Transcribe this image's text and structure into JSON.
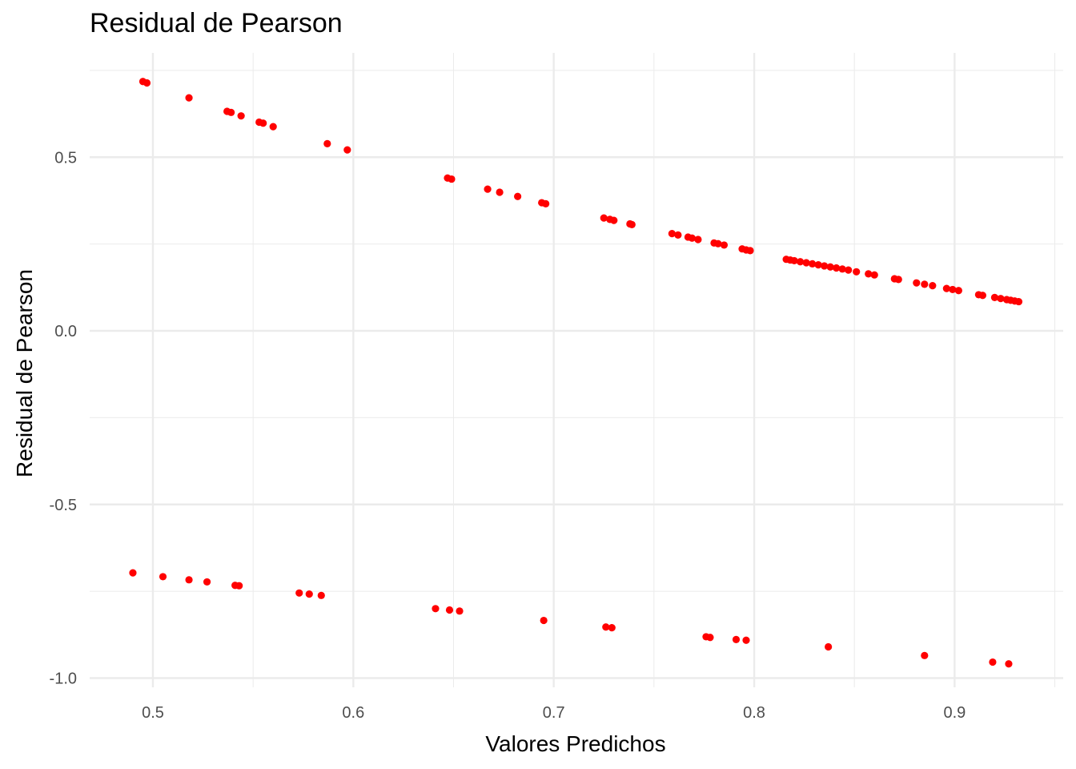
{
  "chart_data": {
    "type": "scatter",
    "title": "Residual de Pearson",
    "xlabel": "Valores Predichos",
    "ylabel": "Residual de Pearson",
    "xlim": [
      0.472,
      0.952
    ],
    "ylim": [
      -1.02,
      0.75
    ],
    "x_ticks": [
      0.5,
      0.6,
      0.7,
      0.8,
      0.9
    ],
    "x_tick_labels": [
      "0.5",
      "0.6",
      "0.7",
      "0.8",
      "0.9"
    ],
    "y_ticks": [
      -1.0,
      -0.5,
      0.0,
      0.5
    ],
    "y_tick_labels": [
      "-1.0",
      "-0.5",
      "0.0",
      "0.5"
    ],
    "grid": true,
    "point_color": "#ff0000",
    "points": [
      {
        "x": 0.495,
        "y": 0.718
      },
      {
        "x": 0.497,
        "y": 0.714
      },
      {
        "x": 0.518,
        "y": 0.671
      },
      {
        "x": 0.537,
        "y": 0.632
      },
      {
        "x": 0.539,
        "y": 0.629
      },
      {
        "x": 0.544,
        "y": 0.619
      },
      {
        "x": 0.553,
        "y": 0.601
      },
      {
        "x": 0.555,
        "y": 0.598
      },
      {
        "x": 0.56,
        "y": 0.588
      },
      {
        "x": 0.587,
        "y": 0.539
      },
      {
        "x": 0.597,
        "y": 0.521
      },
      {
        "x": 0.647,
        "y": 0.44
      },
      {
        "x": 0.649,
        "y": 0.437
      },
      {
        "x": 0.667,
        "y": 0.408
      },
      {
        "x": 0.673,
        "y": 0.399
      },
      {
        "x": 0.682,
        "y": 0.387
      },
      {
        "x": 0.694,
        "y": 0.369
      },
      {
        "x": 0.696,
        "y": 0.366
      },
      {
        "x": 0.725,
        "y": 0.325
      },
      {
        "x": 0.728,
        "y": 0.321
      },
      {
        "x": 0.73,
        "y": 0.318
      },
      {
        "x": 0.738,
        "y": 0.308
      },
      {
        "x": 0.739,
        "y": 0.306
      },
      {
        "x": 0.759,
        "y": 0.28
      },
      {
        "x": 0.762,
        "y": 0.276
      },
      {
        "x": 0.767,
        "y": 0.27
      },
      {
        "x": 0.769,
        "y": 0.267
      },
      {
        "x": 0.772,
        "y": 0.263
      },
      {
        "x": 0.78,
        "y": 0.253
      },
      {
        "x": 0.782,
        "y": 0.251
      },
      {
        "x": 0.785,
        "y": 0.247
      },
      {
        "x": 0.794,
        "y": 0.236
      },
      {
        "x": 0.796,
        "y": 0.233
      },
      {
        "x": 0.798,
        "y": 0.231
      },
      {
        "x": 0.816,
        "y": 0.206
      },
      {
        "x": 0.818,
        "y": 0.204
      },
      {
        "x": 0.82,
        "y": 0.202
      },
      {
        "x": 0.823,
        "y": 0.199
      },
      {
        "x": 0.826,
        "y": 0.196
      },
      {
        "x": 0.829,
        "y": 0.193
      },
      {
        "x": 0.832,
        "y": 0.19
      },
      {
        "x": 0.835,
        "y": 0.187
      },
      {
        "x": 0.838,
        "y": 0.184
      },
      {
        "x": 0.841,
        "y": 0.181
      },
      {
        "x": 0.844,
        "y": 0.178
      },
      {
        "x": 0.847,
        "y": 0.175
      },
      {
        "x": 0.851,
        "y": 0.17
      },
      {
        "x": 0.857,
        "y": 0.164
      },
      {
        "x": 0.86,
        "y": 0.161
      },
      {
        "x": 0.87,
        "y": 0.15
      },
      {
        "x": 0.872,
        "y": 0.148
      },
      {
        "x": 0.881,
        "y": 0.138
      },
      {
        "x": 0.885,
        "y": 0.134
      },
      {
        "x": 0.889,
        "y": 0.13
      },
      {
        "x": 0.896,
        "y": 0.122
      },
      {
        "x": 0.899,
        "y": 0.119
      },
      {
        "x": 0.902,
        "y": 0.116
      },
      {
        "x": 0.912,
        "y": 0.104
      },
      {
        "x": 0.914,
        "y": 0.102
      },
      {
        "x": 0.92,
        "y": 0.096
      },
      {
        "x": 0.923,
        "y": 0.093
      },
      {
        "x": 0.926,
        "y": 0.09
      },
      {
        "x": 0.928,
        "y": 0.088
      },
      {
        "x": 0.93,
        "y": 0.086
      },
      {
        "x": 0.932,
        "y": 0.084
      },
      {
        "x": 0.49,
        "y": -0.697
      },
      {
        "x": 0.505,
        "y": -0.708
      },
      {
        "x": 0.518,
        "y": -0.717
      },
      {
        "x": 0.527,
        "y": -0.723
      },
      {
        "x": 0.541,
        "y": -0.733
      },
      {
        "x": 0.543,
        "y": -0.734
      },
      {
        "x": 0.573,
        "y": -0.755
      },
      {
        "x": 0.578,
        "y": -0.758
      },
      {
        "x": 0.584,
        "y": -0.762
      },
      {
        "x": 0.641,
        "y": -0.8
      },
      {
        "x": 0.648,
        "y": -0.804
      },
      {
        "x": 0.653,
        "y": -0.807
      },
      {
        "x": 0.695,
        "y": -0.834
      },
      {
        "x": 0.726,
        "y": -0.853
      },
      {
        "x": 0.729,
        "y": -0.855
      },
      {
        "x": 0.776,
        "y": -0.881
      },
      {
        "x": 0.778,
        "y": -0.883
      },
      {
        "x": 0.791,
        "y": -0.889
      },
      {
        "x": 0.796,
        "y": -0.891
      },
      {
        "x": 0.837,
        "y": -0.91
      },
      {
        "x": 0.885,
        "y": -0.935
      },
      {
        "x": 0.919,
        "y": -0.954
      },
      {
        "x": 0.927,
        "y": -0.959
      }
    ]
  }
}
